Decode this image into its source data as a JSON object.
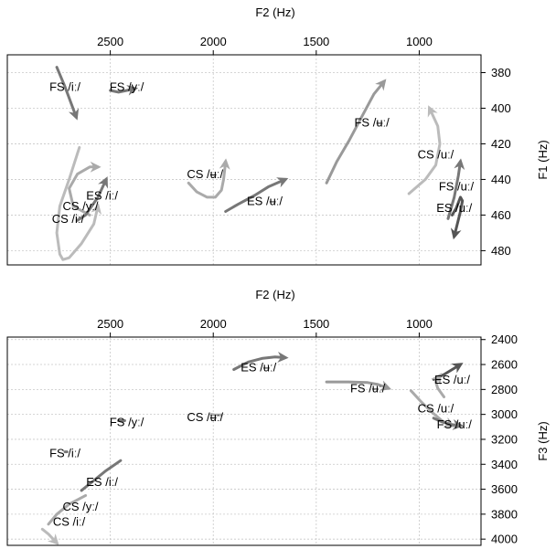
{
  "chart_data": [
    {
      "type": "line",
      "xlabel": "F2 (Hz)",
      "ylabel": "F1 (Hz)",
      "xlim": [
        3000,
        700
      ],
      "ylim": [
        488,
        370
      ],
      "xticks": [
        2500,
        2000,
        1500,
        1000
      ],
      "yticks": [
        380,
        400,
        420,
        440,
        460,
        480
      ],
      "grid": true,
      "series": [
        {
          "color": "#777777",
          "arrow": "end",
          "x": [
            2760,
            2720,
            2665
          ],
          "y": [
            377,
            388,
            405
          ]
        },
        {
          "color": "#777777",
          "arrow": "end",
          "x": [
            2500,
            2460,
            2420,
            2380
          ],
          "y": [
            390,
            391,
            390,
            389
          ]
        },
        {
          "color": "#bbbbbb",
          "arrow": "end",
          "x": [
            2650,
            2700,
            2745,
            2760,
            2745,
            2730,
            2700,
            2640,
            2580,
            2560
          ],
          "y": [
            422,
            440,
            455,
            470,
            482,
            485,
            484,
            476,
            465,
            455
          ]
        },
        {
          "color": "#aaaaaa",
          "arrow": "end",
          "x": [
            2600,
            2680,
            2700,
            2660,
            2600,
            2560
          ],
          "y": [
            460,
            455,
            445,
            437,
            433,
            433
          ]
        },
        {
          "color": "#777777",
          "arrow": "end",
          "x": [
            2660,
            2620,
            2560,
            2520
          ],
          "y": [
            463,
            460,
            450,
            440
          ]
        },
        {
          "color": "#aaaaaa",
          "arrow": "end",
          "x": [
            2120,
            2080,
            2030,
            1990,
            1960,
            1950,
            1940
          ],
          "y": [
            442,
            447,
            450,
            450,
            446,
            440,
            430
          ]
        },
        {
          "color": "#777777",
          "arrow": "end",
          "x": [
            1940,
            1880,
            1800,
            1730,
            1650
          ],
          "y": [
            458,
            454,
            449,
            444,
            440
          ]
        },
        {
          "color": "#999999",
          "arrow": "end",
          "x": [
            1450,
            1400,
            1340,
            1280,
            1220,
            1170
          ],
          "y": [
            442,
            430,
            418,
            405,
            392,
            385
          ]
        },
        {
          "color": "#bbbbbb",
          "arrow": "end",
          "x": [
            1050,
            970,
            920,
            900,
            910,
            950
          ],
          "y": [
            448,
            440,
            432,
            420,
            410,
            400
          ]
        },
        {
          "color": "#777777",
          "arrow": "end",
          "x": [
            860,
            830,
            810,
            800
          ],
          "y": [
            462,
            450,
            438,
            430
          ]
        },
        {
          "color": "#555555",
          "arrow": "end",
          "x": [
            840,
            820,
            800,
            790,
            800,
            830
          ],
          "y": [
            460,
            456,
            450,
            452,
            458,
            472
          ]
        }
      ],
      "annotations": [
        {
          "text": "FS /iː/",
          "x": 2720,
          "y": 388
        },
        {
          "text": "FS /yː/",
          "x": 2420,
          "y": 388
        },
        {
          "text": "FS /ʉː/",
          "x": 1230,
          "y": 408
        },
        {
          "text": "CS /uː/",
          "x": 920,
          "y": 426
        },
        {
          "text": "CS /ʉː/",
          "x": 2040,
          "y": 437
        },
        {
          "text": "ES /ʉː/",
          "x": 1750,
          "y": 452
        },
        {
          "text": "ES /iː/",
          "x": 2540,
          "y": 449
        },
        {
          "text": "CS /yː/",
          "x": 2645,
          "y": 455
        },
        {
          "text": "CS /iː/",
          "x": 2705,
          "y": 462
        },
        {
          "text": "FS /uː/",
          "x": 820,
          "y": 444
        },
        {
          "text": "ES /uː/",
          "x": 830,
          "y": 456
        }
      ]
    },
    {
      "type": "line",
      "xlabel": "F2 (Hz)",
      "ylabel": "F3 (Hz)",
      "xlim": [
        3000,
        700
      ],
      "ylim": [
        4050,
        2380
      ],
      "xticks": [
        2500,
        2000,
        1500,
        1000
      ],
      "yticks": [
        2400,
        2600,
        2800,
        3000,
        3200,
        3400,
        3600,
        3800,
        4000
      ],
      "grid": true,
      "series": [
        {
          "color": "#777777",
          "arrow": "end",
          "x": [
            1900,
            1830,
            1760,
            1700,
            1650
          ],
          "y": [
            2640,
            2580,
            2550,
            2540,
            2545
          ]
        },
        {
          "color": "#999999",
          "arrow": "end",
          "x": [
            1450,
            1350,
            1250,
            1200,
            1150
          ],
          "y": [
            2740,
            2740,
            2745,
            2760,
            2790
          ]
        },
        {
          "color": "#555555",
          "arrow": "end",
          "x": [
            930,
            880,
            840,
            800
          ],
          "y": [
            2720,
            2680,
            2640,
            2600
          ]
        },
        {
          "color": "#aaaaaa",
          "arrow": "end",
          "x": [
            880,
            910,
            920,
            900
          ],
          "y": [
            2860,
            2790,
            2740,
            2690
          ]
        },
        {
          "color": "#aaaaaa",
          "arrow": "end",
          "x": [
            1040,
            990,
            940,
            890,
            840
          ],
          "y": [
            2810,
            2900,
            2980,
            3050,
            3090
          ]
        },
        {
          "color": "#777777",
          "arrow": "end",
          "x": [
            930,
            890,
            850,
            800
          ],
          "y": [
            3030,
            3060,
            3080,
            3090
          ]
        },
        {
          "color": "#aaaaaa",
          "arrow": "none",
          "x": [
            2010,
            1990,
            1960
          ],
          "y": [
            3000,
            3005,
            3005
          ]
        },
        {
          "color": "#777777",
          "arrow": "none",
          "x": [
            2460,
            2430
          ],
          "y": [
            3050,
            3050
          ]
        },
        {
          "color": "#777777",
          "arrow": "none",
          "x": [
            2720,
            2710
          ],
          "y": [
            3300,
            3300
          ]
        },
        {
          "color": "#777777",
          "arrow": "none",
          "x": [
            2640,
            2580,
            2520,
            2450
          ],
          "y": [
            3610,
            3530,
            3450,
            3370
          ]
        },
        {
          "color": "#aaaaaa",
          "arrow": "none",
          "x": [
            2800,
            2760,
            2700,
            2620
          ],
          "y": [
            3880,
            3800,
            3720,
            3650
          ]
        },
        {
          "color": "#bbbbbb",
          "arrow": "end",
          "x": [
            2830,
            2800,
            2780,
            2760
          ],
          "y": [
            3920,
            3960,
            3995,
            4030
          ]
        }
      ],
      "annotations": [
        {
          "text": "ES /ʉː/",
          "x": 1780,
          "y": 2620
        },
        {
          "text": "FS /ʉː/",
          "x": 1250,
          "y": 2790
        },
        {
          "text": "ES /uː/",
          "x": 840,
          "y": 2720
        },
        {
          "text": "CS /uː/",
          "x": 920,
          "y": 2950
        },
        {
          "text": "FS /uː/",
          "x": 830,
          "y": 3080
        },
        {
          "text": "CS /ʉː/",
          "x": 2040,
          "y": 3020
        },
        {
          "text": "FS /yː/",
          "x": 2420,
          "y": 3060
        },
        {
          "text": "FS /iː/",
          "x": 2720,
          "y": 3310
        },
        {
          "text": "ES /iː/",
          "x": 2540,
          "y": 3540
        },
        {
          "text": "CS /yː/",
          "x": 2645,
          "y": 3740
        },
        {
          "text": "CS /iː/",
          "x": 2700,
          "y": 3860
        }
      ]
    }
  ]
}
